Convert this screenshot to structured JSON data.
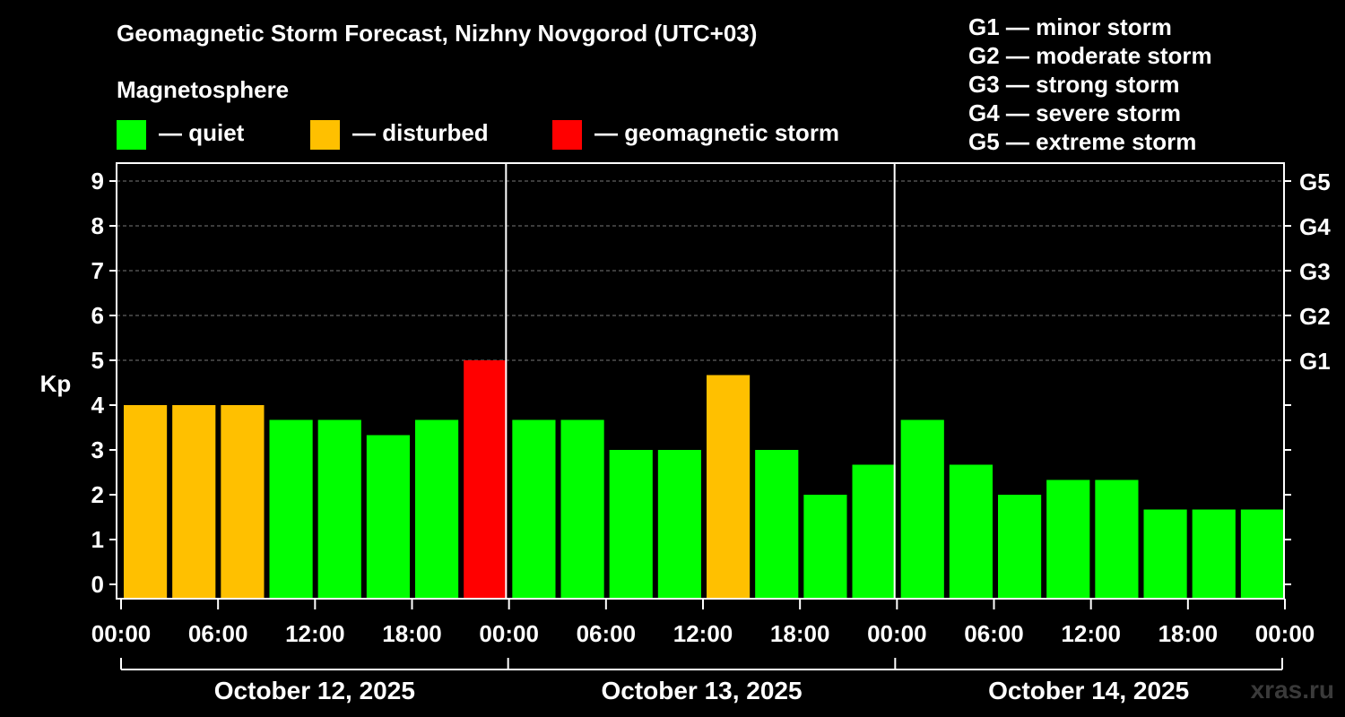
{
  "chart_data": {
    "type": "bar",
    "title": "Geomagnetic Storm Forecast, Nizhny Novgorod (UTC+03)",
    "subtitle": "Magnetosphere",
    "ylabel": "Kp",
    "ylim": [
      0,
      9
    ],
    "y_ticks": [
      "0",
      "1",
      "2",
      "3",
      "4",
      "5",
      "6",
      "7",
      "8",
      "9"
    ],
    "g_ticks": [
      {
        "kp": 5,
        "label": "G1"
      },
      {
        "kp": 6,
        "label": "G2"
      },
      {
        "kp": 7,
        "label": "G3"
      },
      {
        "kp": 8,
        "label": "G4"
      },
      {
        "kp": 9,
        "label": "G5"
      }
    ],
    "x_tick_labels": [
      "00:00",
      "06:00",
      "12:00",
      "18:00",
      "00:00",
      "06:00",
      "12:00",
      "18:00",
      "00:00",
      "06:00",
      "12:00",
      "18:00",
      "00:00"
    ],
    "days": [
      "October 12, 2025",
      "October 13, 2025",
      "October 14, 2025"
    ],
    "values": [
      4.0,
      4.0,
      4.0,
      3.67,
      3.67,
      3.33,
      3.67,
      5.0,
      3.67,
      3.67,
      3.0,
      3.0,
      4.67,
      3.0,
      2.0,
      2.67,
      3.67,
      2.67,
      2.0,
      2.33,
      2.33,
      1.67,
      1.67,
      1.67
    ],
    "statuses": [
      "disturbed",
      "disturbed",
      "disturbed",
      "quiet",
      "quiet",
      "quiet",
      "quiet",
      "storm",
      "quiet",
      "quiet",
      "quiet",
      "quiet",
      "disturbed",
      "quiet",
      "quiet",
      "quiet",
      "quiet",
      "quiet",
      "quiet",
      "quiet",
      "quiet",
      "quiet",
      "quiet",
      "quiet"
    ],
    "colors": {
      "quiet": "#00ff00",
      "disturbed": "#ffc000",
      "storm": "#ff0000"
    },
    "legend": {
      "quiet": "— quiet",
      "disturbed": "— disturbed",
      "storm": "— geomagnetic storm"
    },
    "storm_scale": [
      "G1 — minor storm",
      "G2 — moderate storm",
      "G3 — strong storm",
      "G4 — severe storm",
      "G5 — extreme storm"
    ]
  },
  "watermark": "xras.ru"
}
